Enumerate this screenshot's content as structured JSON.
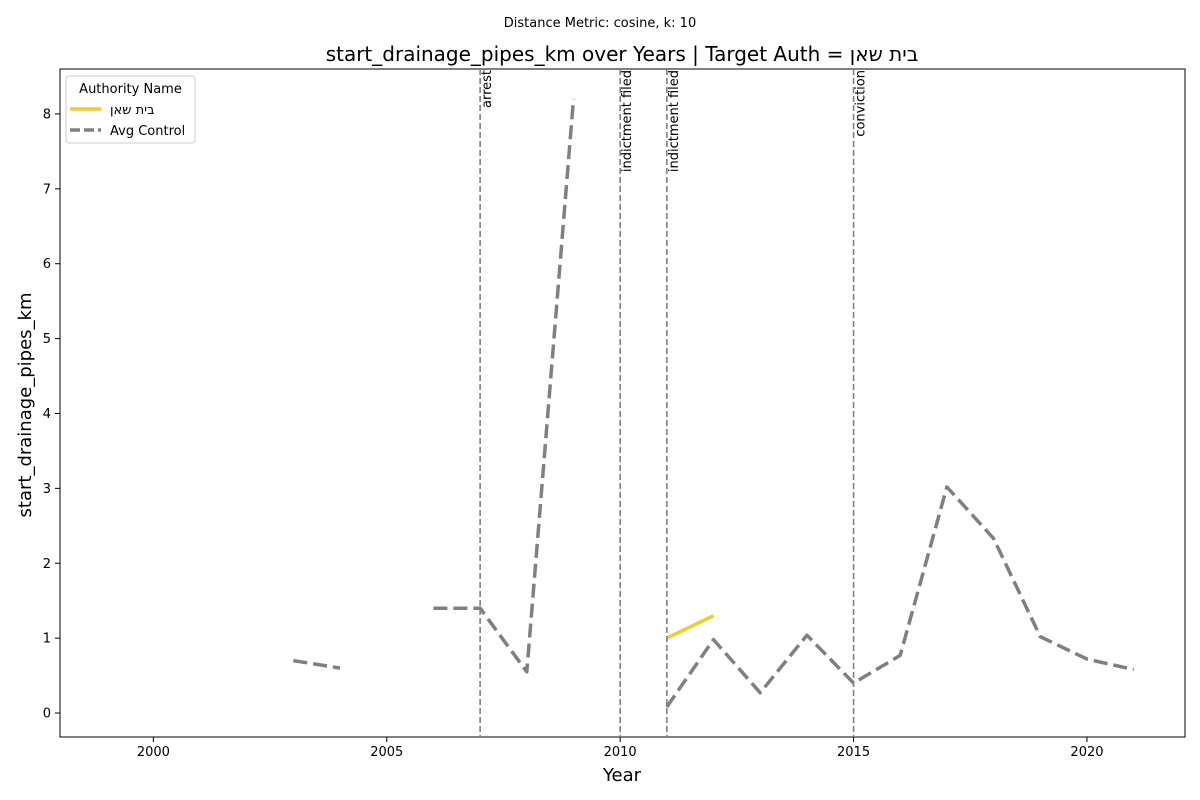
{
  "chart_data": {
    "type": "line",
    "suptitle": "Distance Metric: cosine, k: 10",
    "title": "start_drainage_pipes_km over Years | Target Auth = בית שאן",
    "xlabel": "Year",
    "ylabel": "start_drainage_pipes_km",
    "xlim": [
      1998,
      2022.1
    ],
    "ylim": [
      -0.32,
      8.6
    ],
    "xticks": [
      2000,
      2005,
      2010,
      2015,
      2020
    ],
    "yticks": [
      0,
      1,
      2,
      3,
      4,
      5,
      6,
      7,
      8
    ],
    "grid": false,
    "legend": {
      "title": "Authority Name",
      "placement": "top-left"
    },
    "series": [
      {
        "name": "בית שאן",
        "color": "#f2cc2c",
        "style": "solid",
        "points": [
          [
            2011,
            1.0
          ],
          [
            2012,
            1.3
          ]
        ]
      },
      {
        "name": "Avg Control",
        "color": "#808080",
        "style": "dashed",
        "points": [
          [
            2003,
            0.7
          ],
          [
            2004,
            0.6
          ],
          [
            2005,
            null
          ],
          [
            2006,
            1.4
          ],
          [
            2007,
            1.4
          ],
          [
            2008,
            0.55
          ],
          [
            2009,
            8.2
          ],
          [
            2010,
            null
          ],
          [
            2011,
            0.08
          ],
          [
            2012,
            0.98
          ],
          [
            2013,
            0.27
          ],
          [
            2014,
            1.04
          ],
          [
            2015,
            0.4
          ],
          [
            2016,
            0.77
          ],
          [
            2017,
            3.02
          ],
          [
            2018,
            2.33
          ],
          [
            2019,
            1.02
          ],
          [
            2020,
            0.72
          ],
          [
            2021,
            0.58
          ]
        ]
      }
    ],
    "events": [
      {
        "x": 2007,
        "label": "arrest"
      },
      {
        "x": 2010,
        "label": "indictment filed"
      },
      {
        "x": 2011,
        "label": "indictment filed"
      },
      {
        "x": 2015,
        "label": "conviction"
      }
    ]
  }
}
